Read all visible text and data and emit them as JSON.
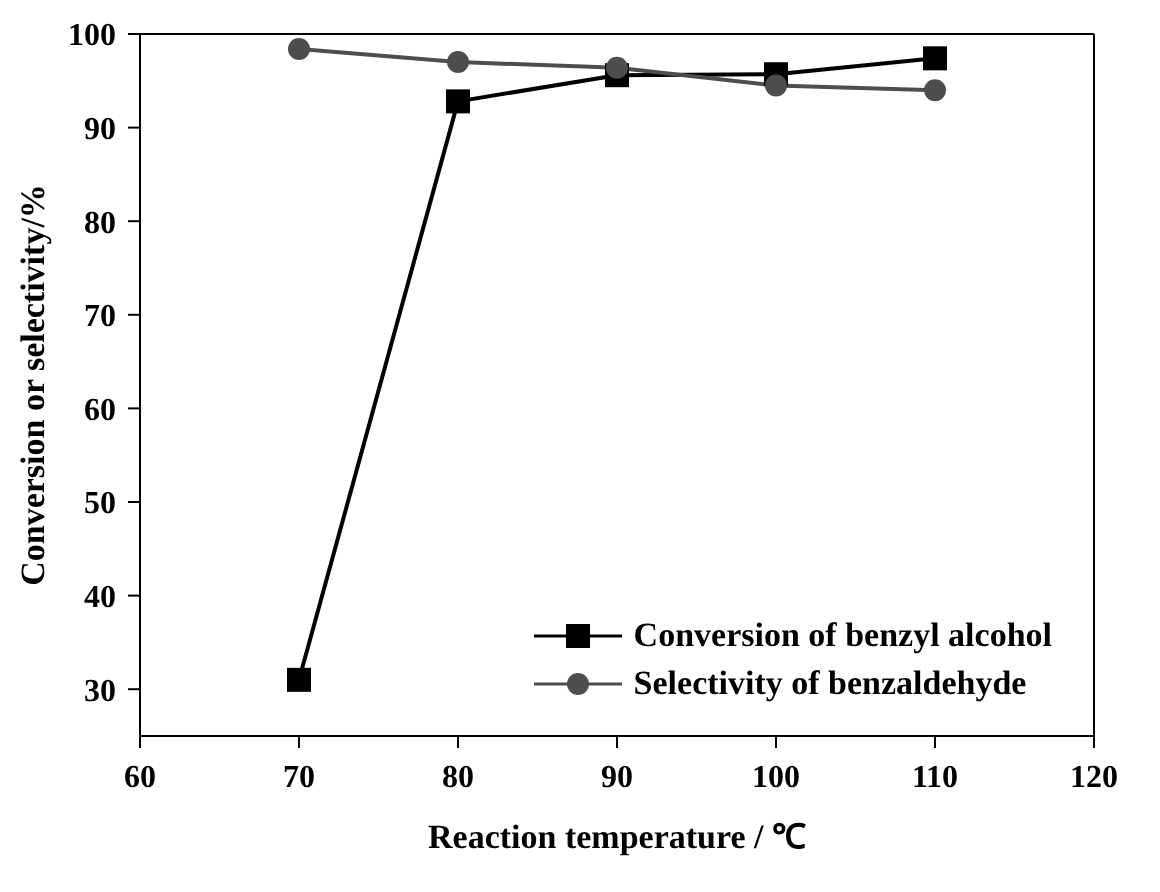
{
  "chart_data": {
    "type": "line",
    "xlabel": "Reaction temperature / ℃",
    "ylabel": "Conversion or selectivity/%",
    "x": [
      70,
      80,
      90,
      100,
      110
    ],
    "series": [
      {
        "name": "Conversion of benzyl alcohol",
        "color": "#000000",
        "marker": "square",
        "values": [
          31,
          92.8,
          95.6,
          95.7,
          97.4
        ]
      },
      {
        "name": "Selectivity of benzaldehyde",
        "color": "#4d4d4d",
        "marker": "circle",
        "values": [
          98.4,
          97.0,
          96.4,
          94.5,
          94.0
        ]
      }
    ],
    "xlim": [
      60,
      120
    ],
    "xticks": [
      60,
      70,
      80,
      90,
      100,
      110,
      120
    ],
    "ylim": [
      25,
      100
    ],
    "yticks": [
      30,
      40,
      50,
      60,
      70,
      80,
      90,
      100
    ],
    "grid": false,
    "legend": "bottom right",
    "line_style": "solid"
  }
}
